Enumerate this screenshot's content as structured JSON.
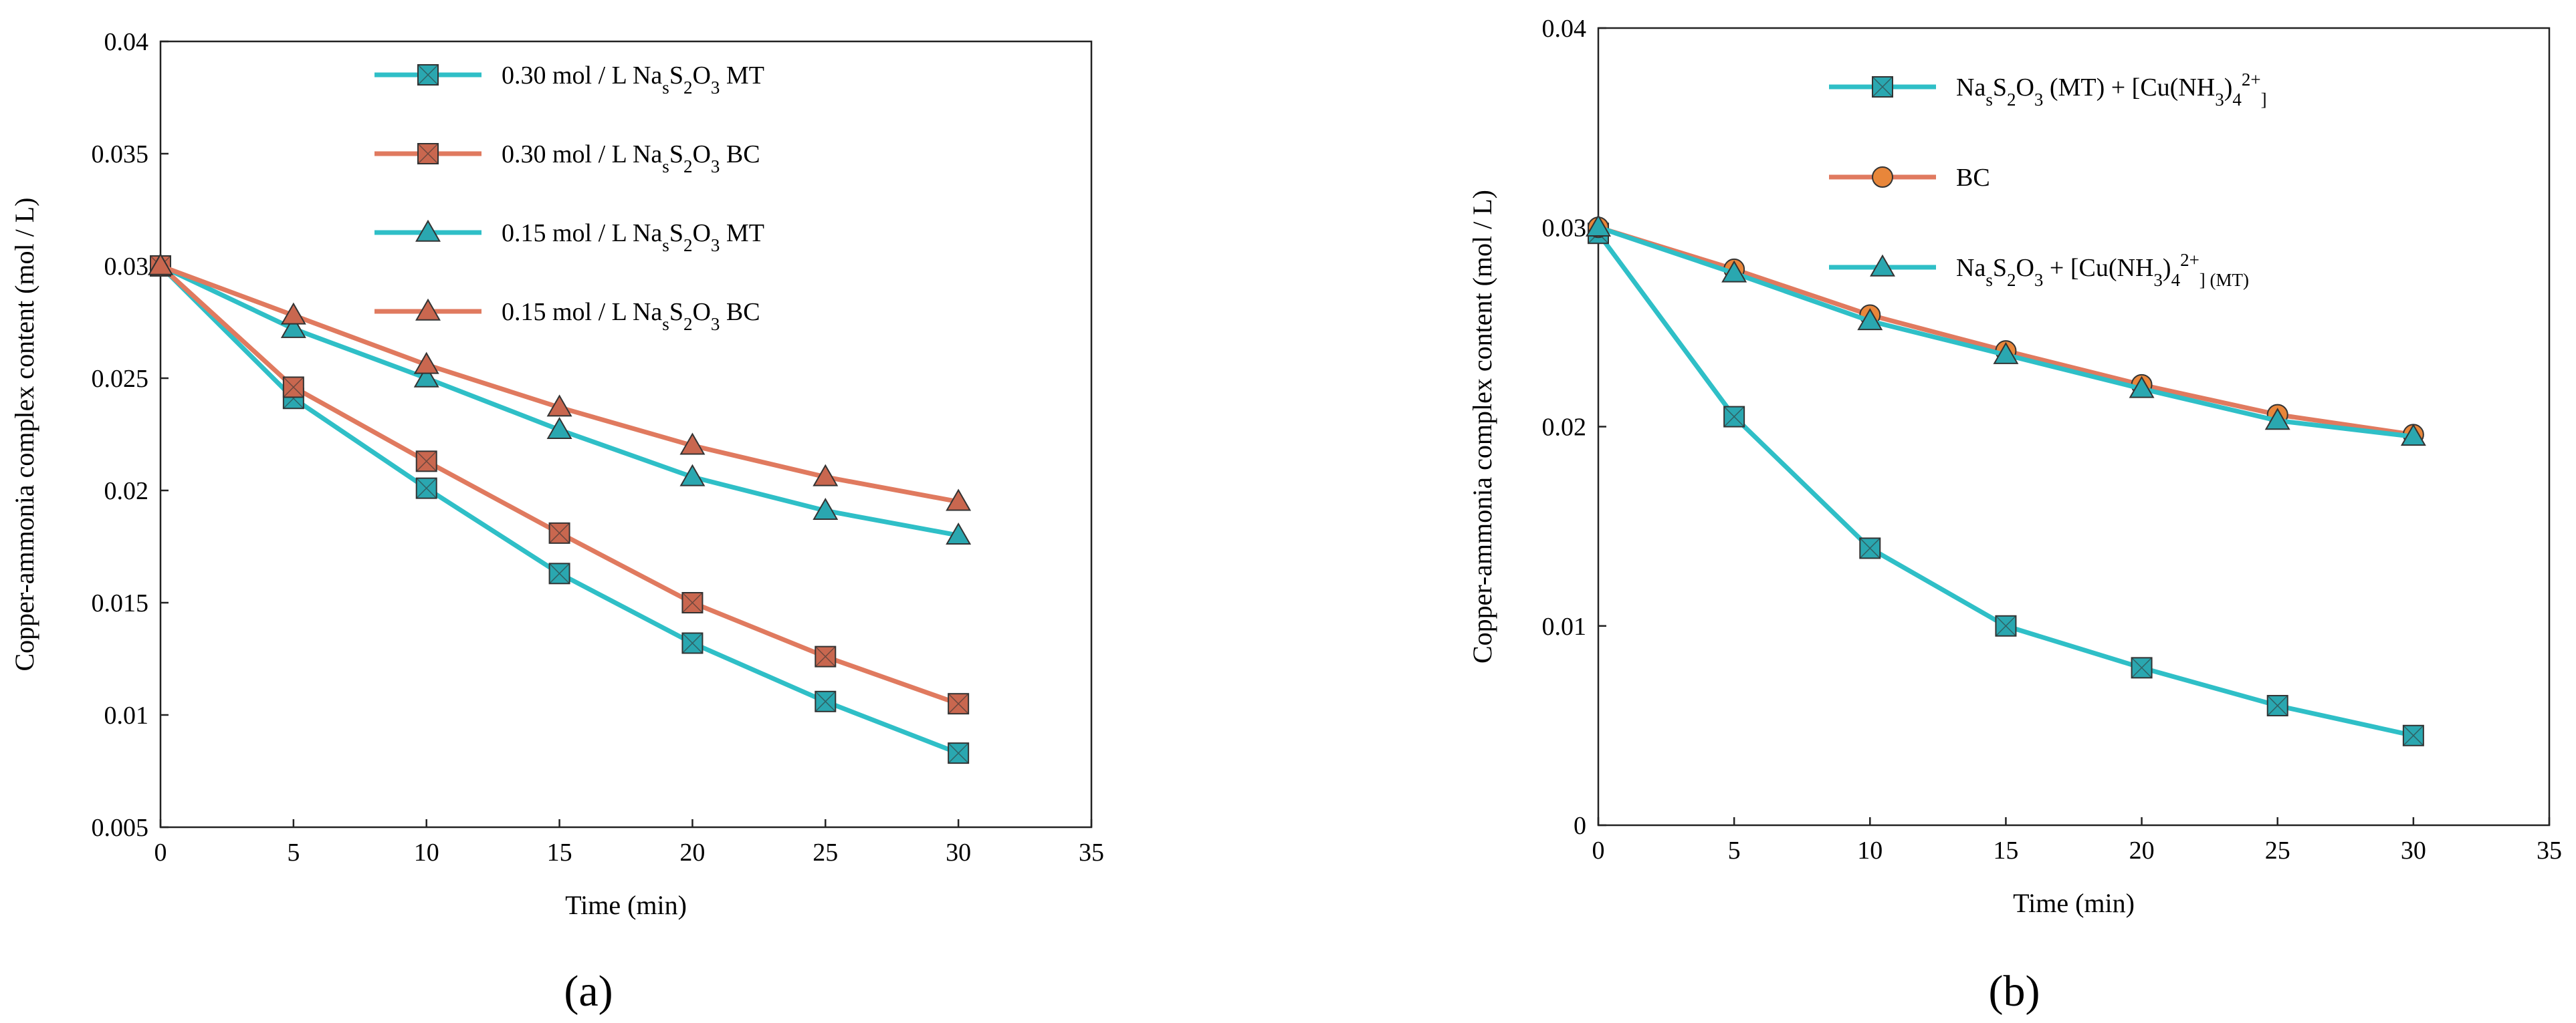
{
  "colors": {
    "teal": "#2fbfc7",
    "coral": "#e07a5f",
    "teal_marker": "#2aa7b0",
    "coral_marker": "#c9674f",
    "orange_marker": "#e8863a"
  },
  "chart_data": [
    {
      "panel": "a",
      "type": "line",
      "panel_label": "(a)",
      "xlabel": "Time (min)",
      "ylabel": "Copper-ammonia complex content (mol / L)",
      "xlim": [
        0,
        35
      ],
      "ylim": [
        0.005,
        0.04
      ],
      "xticks": [
        "0",
        "5",
        "10",
        "15",
        "20",
        "25",
        "30",
        "35"
      ],
      "yticks": [
        "0.005",
        "0.01",
        "0.015",
        "0.02",
        "0.025",
        "0.03",
        "0.035",
        "0.04"
      ],
      "legend_position": "top-center",
      "x": [
        0,
        5,
        10,
        15,
        20,
        25,
        30
      ],
      "series": [
        {
          "name": "0.30 mol / L NasS2O3  MT",
          "legend_parts": [
            "0.30 mol / L Na",
            "s",
            "S",
            "2",
            "O",
            "3",
            "  MT"
          ],
          "color": "teal",
          "marker": "square",
          "values": [
            0.03,
            0.0241,
            0.0201,
            0.0163,
            0.0132,
            0.0106,
            0.0083
          ]
        },
        {
          "name": "0.30 mol / L NasS2O3  BC",
          "legend_parts": [
            "0.30 mol / L Na",
            "s",
            "S",
            "2",
            "O",
            "3",
            "  BC"
          ],
          "color": "coral",
          "marker": "square",
          "values": [
            0.03,
            0.0246,
            0.0213,
            0.0181,
            0.015,
            0.0126,
            0.0105
          ]
        },
        {
          "name": "0.15 mol / L NasS2O3  MT",
          "legend_parts": [
            "0.15 mol / L Na",
            "s",
            "S",
            "2",
            "O",
            "3",
            "  MT"
          ],
          "color": "teal",
          "marker": "triangle",
          "values": [
            0.03,
            0.0272,
            0.025,
            0.0227,
            0.0206,
            0.0191,
            0.018
          ]
        },
        {
          "name": "0.15 mol / L NasS2O3  BC",
          "legend_parts": [
            "0.15 mol / L Na",
            "s",
            "S",
            "2",
            "O",
            "3",
            "  BC"
          ],
          "color": "coral",
          "marker": "triangle",
          "values": [
            0.03,
            0.0278,
            0.0256,
            0.0237,
            0.022,
            0.0206,
            0.0195
          ]
        }
      ]
    },
    {
      "panel": "b",
      "type": "line",
      "panel_label": "(b)",
      "xlabel": "Time (min)",
      "ylabel": "Copper-ammonia complex content (mol / L)",
      "xlim": [
        0,
        35
      ],
      "ylim": [
        0,
        0.04
      ],
      "xticks": [
        "0",
        "5",
        "10",
        "15",
        "20",
        "25",
        "30",
        "35"
      ],
      "yticks": [
        "0",
        "0.01",
        "0.02",
        "0.03",
        "0.04"
      ],
      "legend_position": "top-center",
      "x": [
        0,
        5,
        10,
        15,
        20,
        25,
        30
      ],
      "series": [
        {
          "name": "NasS2O3 (MT) + [Cu(NH3)42+]",
          "legend_parts": [
            "Na",
            "s",
            "S",
            "2",
            "O",
            "3",
            " (MT) + [Cu(NH",
            "3",
            ")",
            "4",
            "2+",
            "]"
          ],
          "color": "teal",
          "marker": "square",
          "values": [
            0.0297,
            0.0205,
            0.0139,
            0.01,
            0.0079,
            0.006,
            0.0045
          ]
        },
        {
          "name": "BC",
          "legend_parts": [
            "BC"
          ],
          "color": "coral",
          "marker": "circle",
          "values": [
            0.03,
            0.0279,
            0.0256,
            0.0238,
            0.0221,
            0.0206,
            0.0196
          ]
        },
        {
          "name": "NasS2O3 + [Cu(NH3)42+] (MT)",
          "legend_parts": [
            "Na",
            "s",
            "S",
            "2",
            "O",
            "3",
            " + [Cu(NH",
            "3",
            ")",
            "4",
            "2+",
            "] (MT)"
          ],
          "color": "teal",
          "marker": "triangle",
          "values": [
            0.03,
            0.0277,
            0.0253,
            0.0236,
            0.0219,
            0.0203,
            0.0195
          ]
        }
      ]
    }
  ]
}
